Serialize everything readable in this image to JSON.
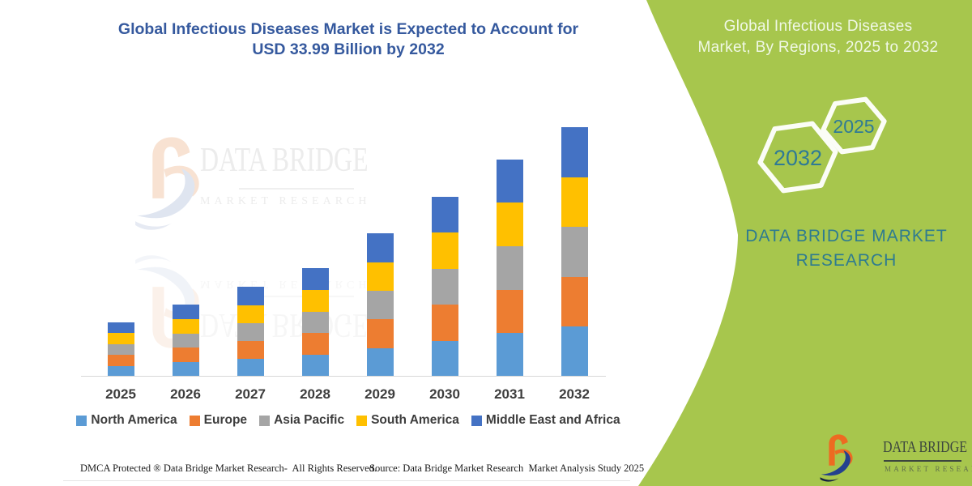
{
  "title": {
    "line1": "Global Infectious Diseases Market is Expected to Account for",
    "line2": "USD 33.99 Billion by 2032",
    "color": "#35599e"
  },
  "watermark": {
    "brand": "DATA BRIDGE",
    "sub": "MARKET RESEARCH"
  },
  "side_panel": {
    "bg_color": "#a7c64d",
    "title_line1": "Global Infectious Diseases",
    "title_line2": "Market, By Regions, 2025 to 2032",
    "hexagons": [
      {
        "label": "2032"
      },
      {
        "label": "2025"
      }
    ],
    "brand_line1": "DATA BRIDGE MARKET",
    "brand_line2": "RESEARCH",
    "text_color": "#2e7b90"
  },
  "logo": {
    "brand": "DATA BRIDGE",
    "sub": "MARKET RESEARCH"
  },
  "footer": {
    "dmca": "DMCA Protected ® Data Bridge Market Research-  All Rights Reserved.",
    "source": "Source: Data Bridge Market Research  Market Analysis Study 2025"
  },
  "chart_data": {
    "type": "bar",
    "stacked": true,
    "title": "Global Infectious Diseases Market is Expected to Account for USD 33.99 Billion by 2032",
    "unit": "USD Billion",
    "categories": [
      "2025",
      "2026",
      "2027",
      "2028",
      "2029",
      "2030",
      "2031",
      "2032"
    ],
    "series": [
      {
        "name": "North America",
        "color": "#5B9BD5",
        "values": [
          1.48,
          1.96,
          2.44,
          2.96,
          3.9,
          4.9,
          5.92,
          6.8
        ]
      },
      {
        "name": "Europe",
        "color": "#ED7D31",
        "values": [
          1.48,
          1.96,
          2.44,
          2.96,
          3.9,
          4.9,
          5.92,
          6.8
        ]
      },
      {
        "name": "Asia Pacific",
        "color": "#A5A5A5",
        "values": [
          1.48,
          1.96,
          2.44,
          2.96,
          3.9,
          4.9,
          5.92,
          6.8
        ]
      },
      {
        "name": "South America",
        "color": "#FFC000",
        "values": [
          1.48,
          1.96,
          2.44,
          2.96,
          3.9,
          4.9,
          5.92,
          6.8
        ]
      },
      {
        "name": "Middle East and Africa",
        "color": "#4472C4",
        "values": [
          1.48,
          1.96,
          2.44,
          2.96,
          3.9,
          4.9,
          5.92,
          6.79
        ]
      }
    ],
    "totals": [
      7.4,
      9.8,
      12.2,
      14.8,
      19.5,
      24.5,
      29.6,
      33.99
    ],
    "ylim": [
      0,
      35
    ],
    "grid": false,
    "value_axis_visible": false,
    "legend_position": "bottom",
    "values_estimated": true
  }
}
